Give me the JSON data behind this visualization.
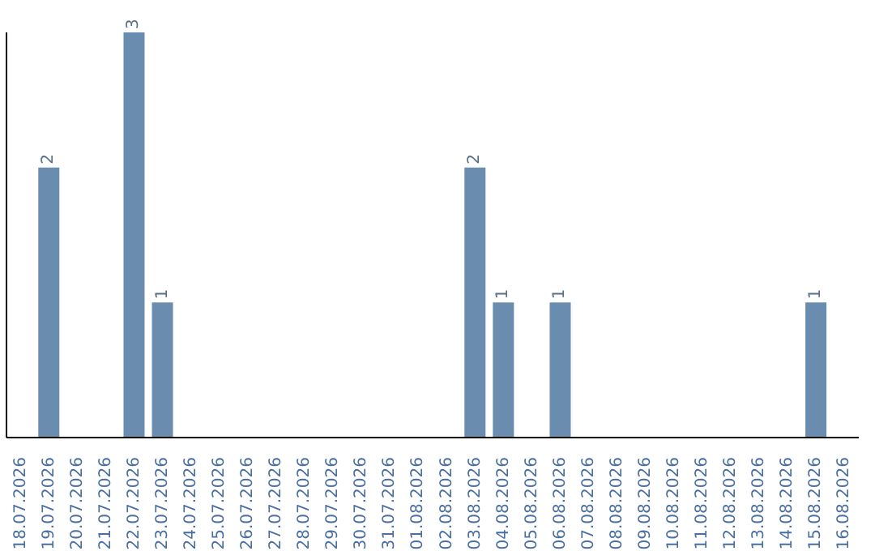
{
  "chart_data": {
    "type": "bar",
    "categories": [
      "18.07.2026",
      "19.07.2026",
      "20.07.2026",
      "21.07.2026",
      "22.07.2026",
      "23.07.2026",
      "24.07.2026",
      "25.07.2026",
      "26.07.2026",
      "27.07.2026",
      "28.07.2026",
      "29.07.2026",
      "30.07.2026",
      "31.07.2026",
      "01.08.2026",
      "02.08.2026",
      "03.08.2026",
      "04.08.2026",
      "05.08.2026",
      "06.08.2026",
      "07.08.2026",
      "08.08.2026",
      "09.08.2026",
      "10.08.2026",
      "11.08.2026",
      "12.08.2026",
      "13.08.2026",
      "14.08.2026",
      "15.08.2026",
      "16.08.2026"
    ],
    "values": [
      0,
      2,
      0,
      0,
      3,
      1,
      0,
      0,
      0,
      0,
      0,
      0,
      0,
      0,
      0,
      0,
      2,
      1,
      0,
      1,
      0,
      0,
      0,
      0,
      0,
      0,
      0,
      0,
      1,
      0
    ],
    "value_labels": [
      null,
      "2",
      null,
      null,
      "3",
      "1",
      null,
      null,
      null,
      null,
      null,
      null,
      null,
      null,
      null,
      null,
      "2",
      "1",
      null,
      "1",
      null,
      null,
      null,
      null,
      null,
      null,
      null,
      null,
      "1",
      null
    ],
    "color": "#6a8caf",
    "grid": false,
    "legend": false
  }
}
